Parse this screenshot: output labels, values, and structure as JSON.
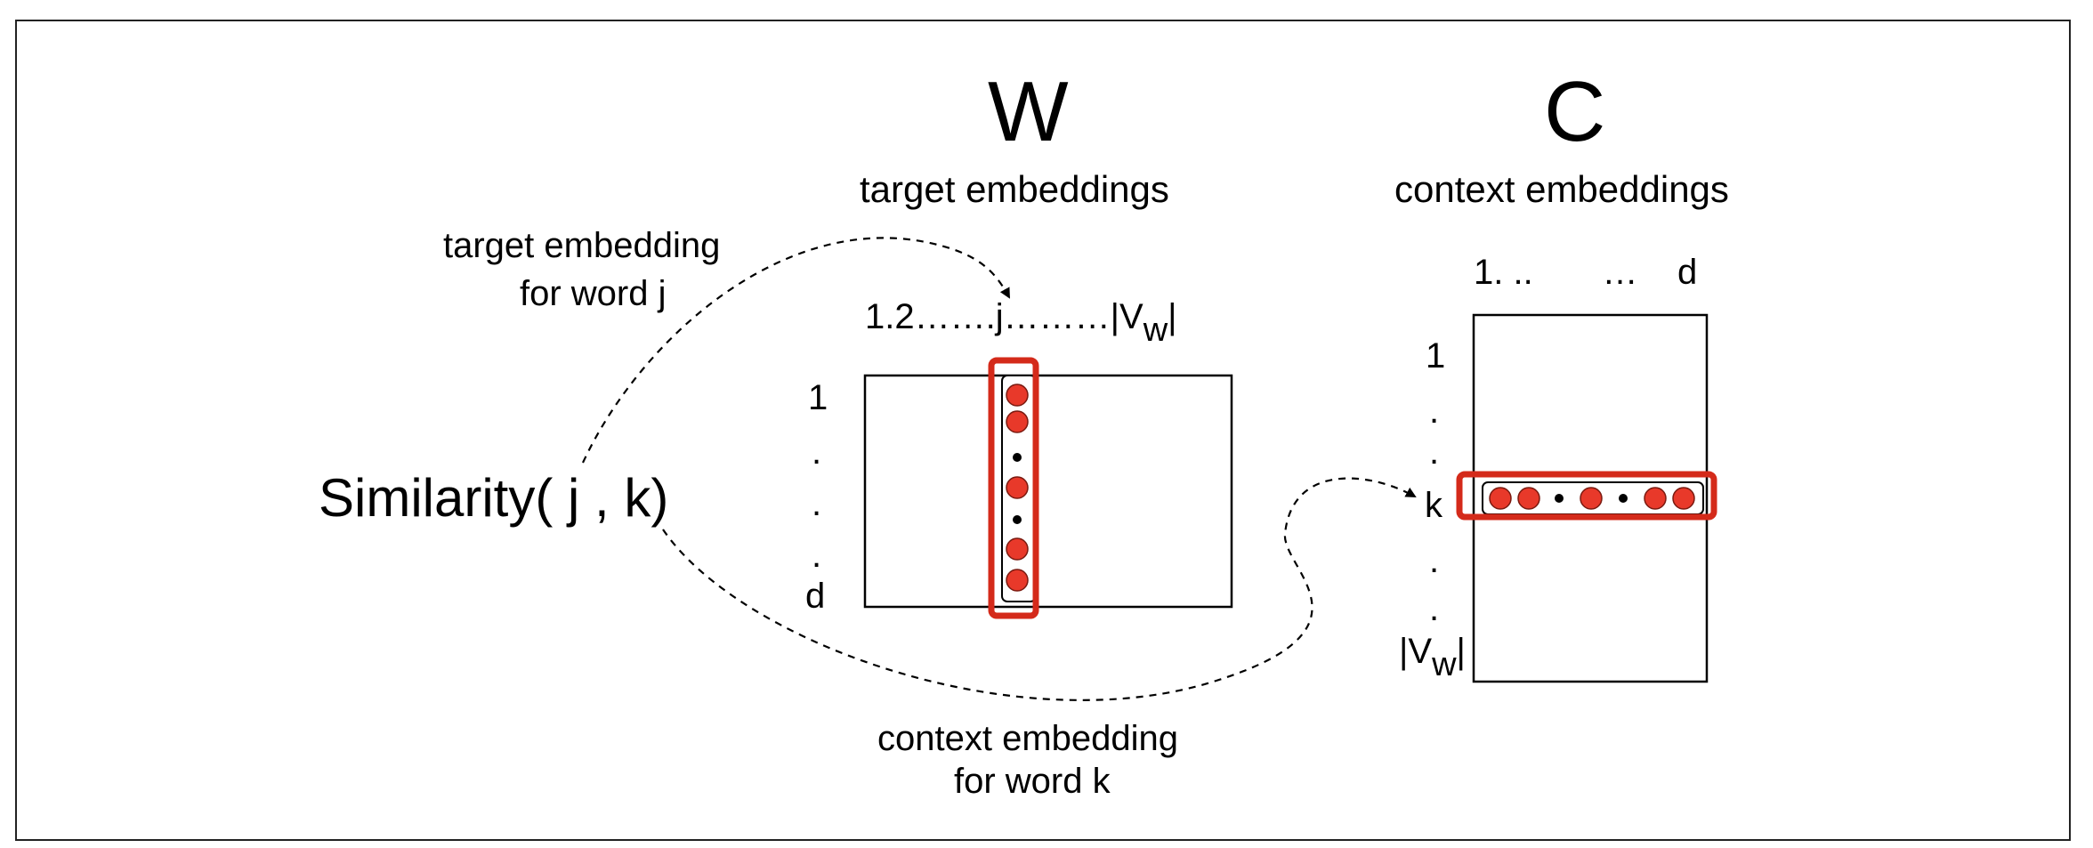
{
  "colors": {
    "accent": "#d42a1a",
    "dot": "#e8392a",
    "line": "#000000"
  },
  "matrices": {
    "W": {
      "letter": "W",
      "caption": "target embeddings",
      "col_header": "1.2…….j………|V",
      "col_header_sub": "w",
      "col_header_end": "|",
      "rows": [
        "1",
        ".",
        ".",
        ".",
        "d"
      ]
    },
    "C": {
      "letter": "C",
      "caption": "context embeddings",
      "col_header": "1. ..       …    d",
      "rows": [
        "1",
        ".",
        ".",
        "k",
        ".",
        "."
      ],
      "last_row": "|V",
      "last_row_sub": "w",
      "last_row_end": "|"
    }
  },
  "annotations": {
    "target_line1": "target embedding",
    "target_line2": "for word j",
    "context_line1": "context embedding",
    "context_line2": "for word k",
    "similarity": "Similarity( j , k)"
  }
}
